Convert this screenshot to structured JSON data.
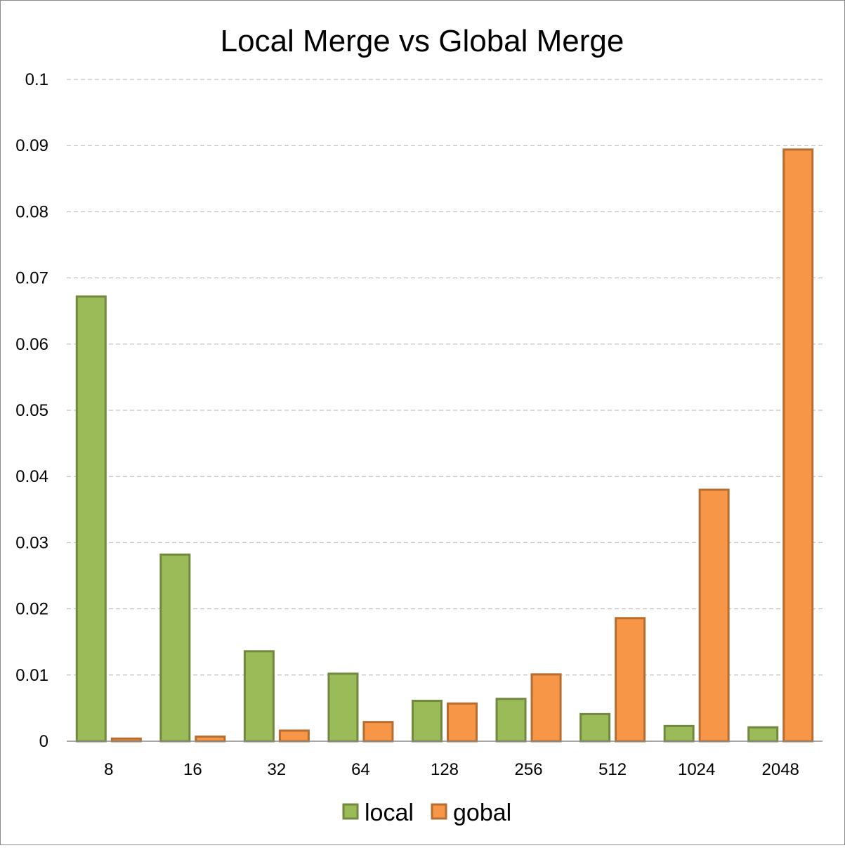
{
  "chart_data": {
    "type": "bar",
    "title": "Local Merge vs Global Merge",
    "xlabel": "",
    "ylabel": "",
    "categories": [
      "8",
      "16",
      "32",
      "64",
      "128",
      "256",
      "512",
      "1024",
      "2048"
    ],
    "series": [
      {
        "name": "local",
        "color": "#9bbb59",
        "border": "#71893f",
        "values": [
          0.0672,
          0.0282,
          0.0136,
          0.0102,
          0.0061,
          0.0064,
          0.0041,
          0.0023,
          0.0021
        ]
      },
      {
        "name": "gobal",
        "color": "#f79646",
        "border": "#b66d31",
        "values": [
          0.0004,
          0.0007,
          0.0016,
          0.0029,
          0.0057,
          0.0101,
          0.0186,
          0.038,
          0.0894
        ]
      }
    ],
    "ylim": [
      0,
      0.1
    ],
    "yticks": [
      "0",
      "0.01",
      "0.02",
      "0.03",
      "0.04",
      "0.05",
      "0.06",
      "0.07",
      "0.08",
      "0.09",
      "0.1"
    ],
    "grid": true,
    "legend_position": "bottom"
  }
}
